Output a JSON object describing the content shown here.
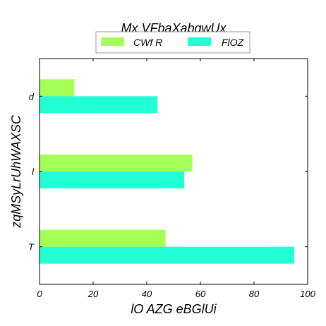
{
  "chart_data": {
    "type": "bar",
    "orientation": "horizontal",
    "title": "Mx VFbaXabqwUx",
    "xlabel": "lO AZG eBGlUi",
    "ylabel": "zqMSyLrUhWAXSC",
    "categories": [
      "d",
      "l",
      "T"
    ],
    "series": [
      {
        "name": "CWf R",
        "color": "#a6ff57",
        "values": [
          13,
          57,
          47
        ]
      },
      {
        "name": "FlOZ",
        "color": "#22ffd4",
        "values": [
          44,
          54,
          95
        ]
      }
    ],
    "xlim": [
      0,
      100
    ],
    "xticks": [
      0,
      20,
      40,
      60,
      80,
      100
    ],
    "grid": false,
    "legend": "top-center"
  }
}
